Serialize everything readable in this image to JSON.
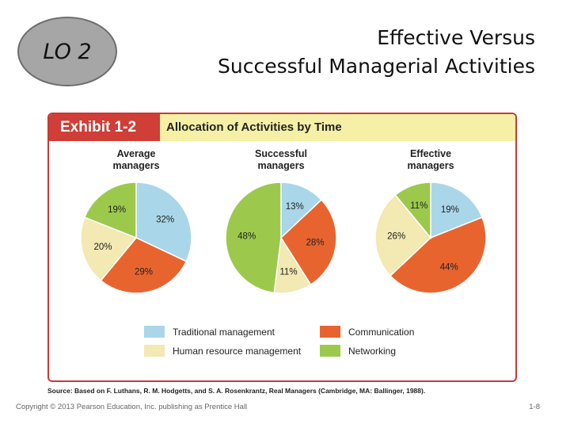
{
  "lo_badge": "LO 2",
  "slide_title": {
    "line1": "Effective Versus",
    "line2": "Successful Managerial Activities"
  },
  "exhibit": {
    "tag": "Exhibit 1-2",
    "title": "Allocation of Activities by Time"
  },
  "chart_data": {
    "type": "pie",
    "categories": [
      "Traditional management",
      "Communication",
      "Human resource management",
      "Networking"
    ],
    "colors": [
      "#a9d7e9",
      "#e8642f",
      "#f2e9b3",
      "#9cc94c"
    ],
    "charts": [
      {
        "title": "Average managers",
        "values": [
          32,
          29,
          20,
          19
        ],
        "labels": [
          "32%",
          "29%",
          "20%",
          "19%"
        ]
      },
      {
        "title": "Successful managers",
        "values": [
          13,
          28,
          11,
          48
        ],
        "labels": [
          "13%",
          "28%",
          "11%",
          "48%"
        ]
      },
      {
        "title": "Effective managers",
        "values": [
          19,
          44,
          26,
          11
        ],
        "labels": [
          "19%",
          "44%",
          "26%",
          "11%"
        ]
      }
    ],
    "legend": [
      "Traditional management",
      "Communication",
      "Human resource management",
      "Networking"
    ]
  },
  "source": "Source: Based on F. Luthans, R. M. Hodgetts, and S. A. Rosenkrantz, Real Managers (Cambridge, MA: Ballinger, 1988).",
  "footer": {
    "copyright": "Copyright © 2013 Pearson Education, Inc. publishing as Prentice Hall",
    "page": "1-8"
  }
}
